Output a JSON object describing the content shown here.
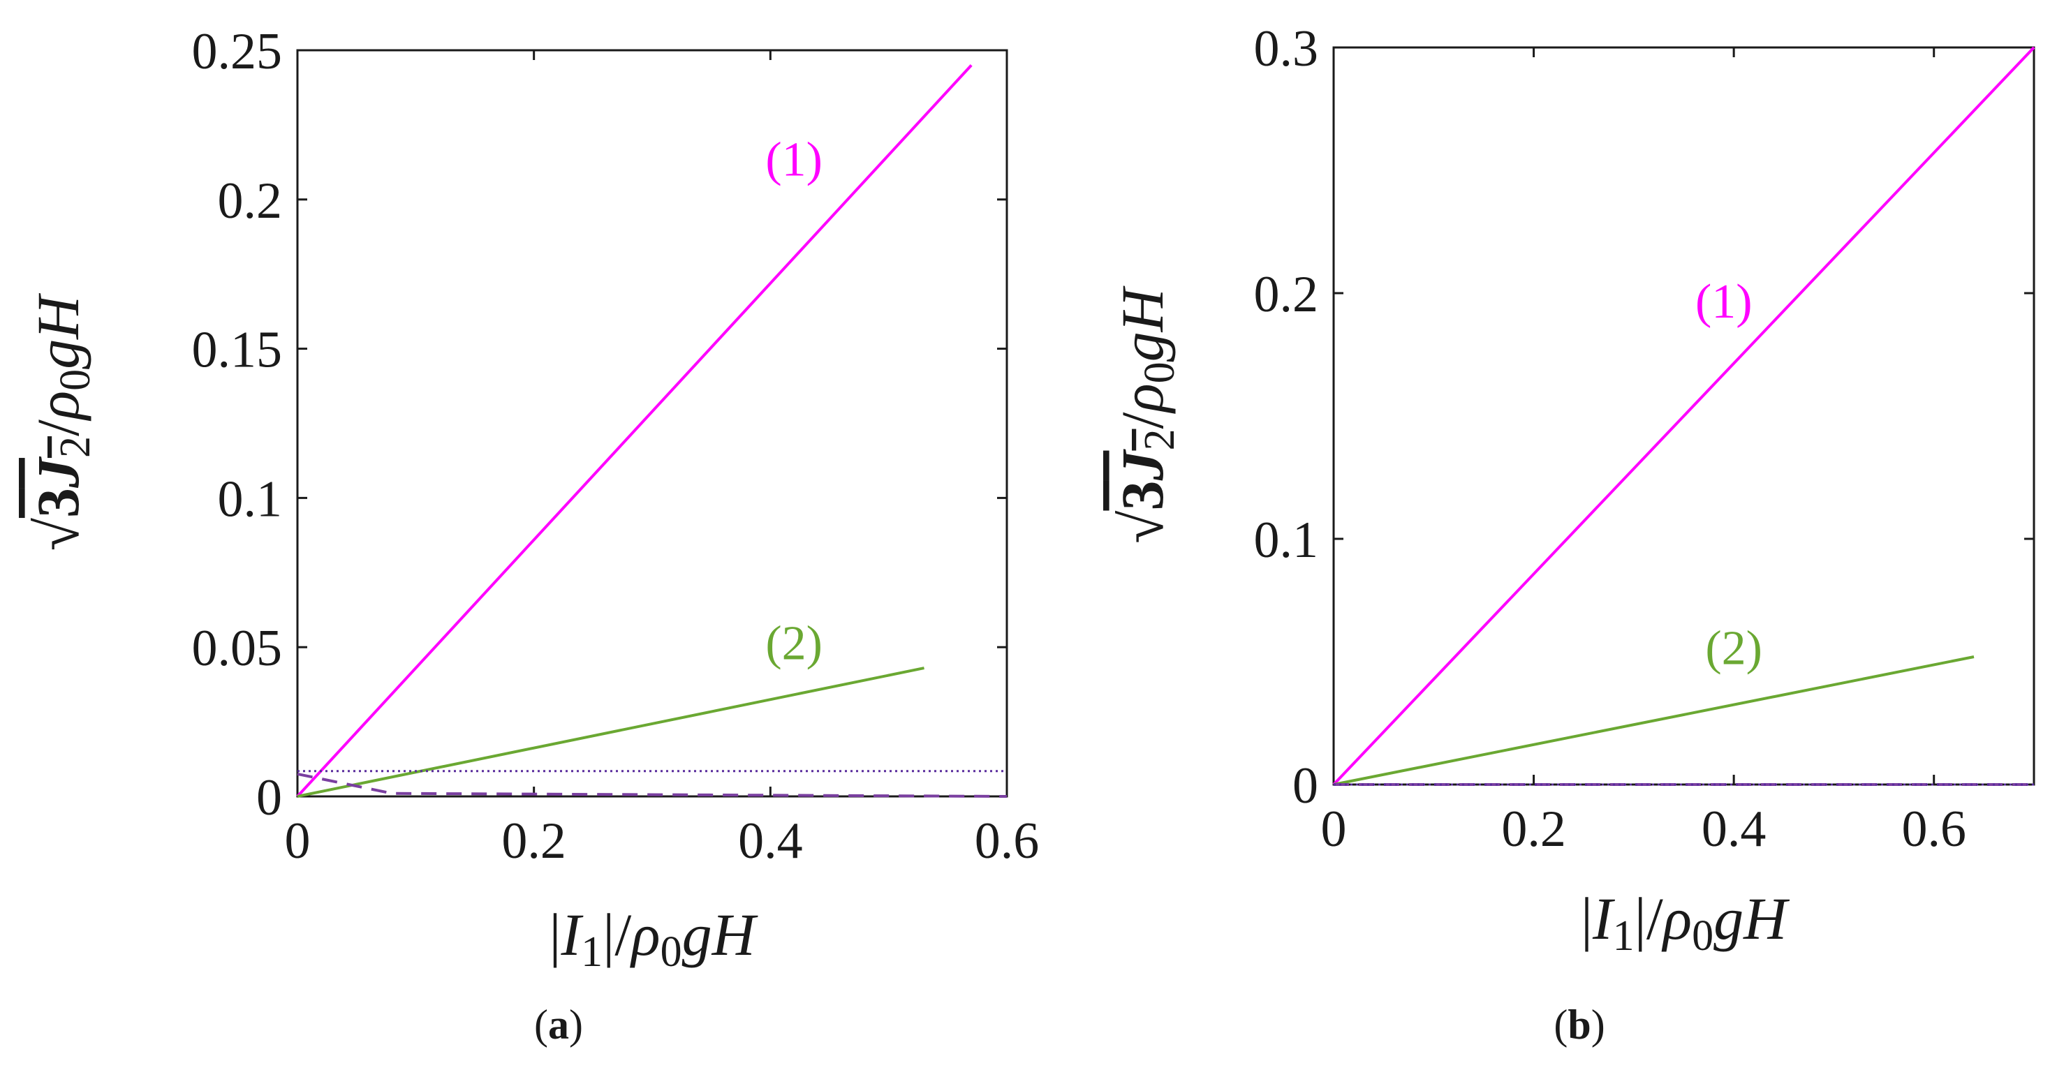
{
  "chart_data": [
    {
      "panel": "(a)",
      "caption": {
        "open": "(",
        "letter": "a",
        "close": ")"
      },
      "type": "line",
      "xlabel": "|I1|/ρ0gH",
      "ylabel": "√(3J2)/ρ0gH",
      "xlim": [
        0,
        0.6
      ],
      "ylim": [
        0,
        0.25
      ],
      "xticks": [
        "0",
        "0.2",
        "0.4",
        "0.6"
      ],
      "yticks": [
        "0",
        "0.05",
        "0.1",
        "0.15",
        "0.2",
        "0.25"
      ],
      "xtick_values": [
        0,
        0.2,
        0.4,
        0.6
      ],
      "ytick_values": [
        0,
        0.05,
        0.1,
        0.15,
        0.2,
        0.25
      ],
      "series": [
        {
          "name": "(1)",
          "color": "#ff00ff",
          "style": "solid",
          "x": [
            0,
            0.57
          ],
          "y": [
            0,
            0.245
          ],
          "label_at": [
            0.42,
            0.208
          ]
        },
        {
          "name": "(2)",
          "color": "#6aa832",
          "style": "solid",
          "x": [
            0,
            0.53
          ],
          "y": [
            0,
            0.043
          ],
          "label_at": [
            0.42,
            0.046
          ]
        },
        {
          "name": "",
          "color": "#7a3fa0",
          "style": "dashed",
          "x": [
            0,
            0.08,
            0.6
          ],
          "y": [
            0.0075,
            0.001,
            0.0
          ],
          "label_at": null
        },
        {
          "name": "",
          "color": "#5a2d9c",
          "style": "dotted",
          "x": [
            0,
            0.6
          ],
          "y": [
            0.0085,
            0.0085
          ],
          "label_at": null
        }
      ]
    },
    {
      "panel": "(b)",
      "caption": {
        "open": "(",
        "letter": "b",
        "close": ")"
      },
      "type": "line",
      "xlabel": "|I1|/ρ0gH",
      "ylabel": "√(3J2)/ρ0gH",
      "xlim": [
        0,
        0.7
      ],
      "ylim": [
        0,
        0.3
      ],
      "xticks": [
        "0",
        "0.2",
        "0.4",
        "0.6"
      ],
      "yticks": [
        "0",
        "0.1",
        "0.2",
        "0.3"
      ],
      "xtick_values": [
        0,
        0.2,
        0.4,
        0.6
      ],
      "ytick_values": [
        0,
        0.1,
        0.2,
        0.3
      ],
      "series": [
        {
          "name": "(1)",
          "color": "#ff00ff",
          "style": "solid",
          "x": [
            0,
            0.7
          ],
          "y": [
            0,
            0.3
          ],
          "label_at": [
            0.39,
            0.19
          ]
        },
        {
          "name": "(2)",
          "color": "#6aa832",
          "style": "solid",
          "x": [
            0,
            0.64
          ],
          "y": [
            0,
            0.052
          ],
          "label_at": [
            0.4,
            0.049
          ]
        },
        {
          "name": "",
          "color": "#7a3fa0",
          "style": "dashed",
          "x": [
            0,
            0.7
          ],
          "y": [
            0.0,
            0.0
          ],
          "label_at": null
        },
        {
          "name": "",
          "color": "#5a2d9c",
          "style": "dotted",
          "x": [
            0,
            0.7
          ],
          "y": [
            0.0,
            0.0
          ],
          "label_at": null
        }
      ]
    }
  ]
}
